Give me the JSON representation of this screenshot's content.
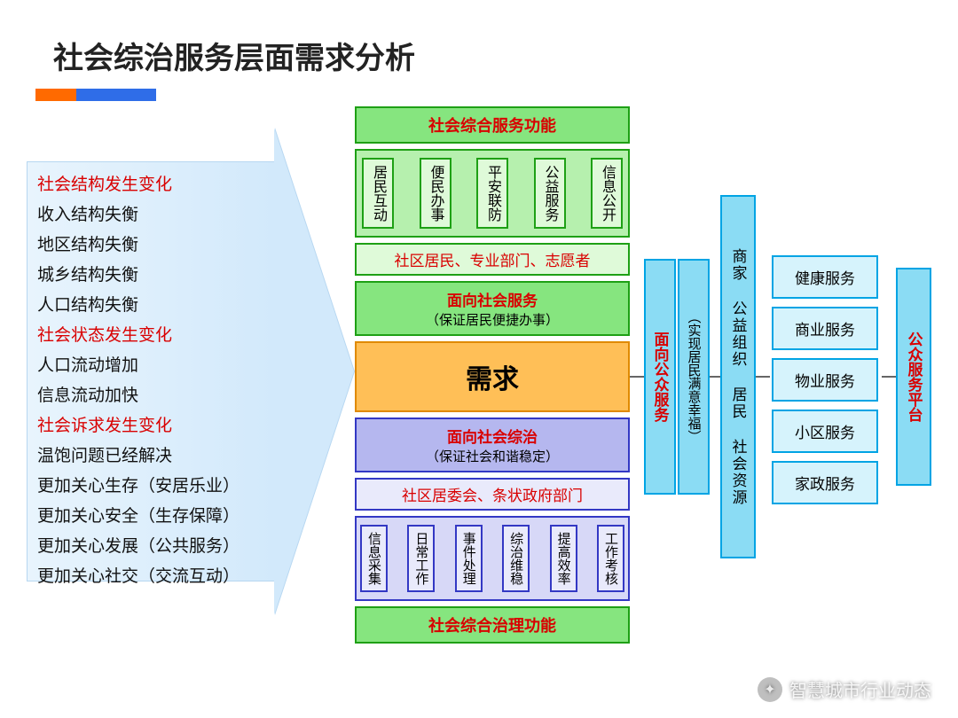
{
  "title": "社会综治服务层面需求分析",
  "accent": {
    "orange": "#ff6a00",
    "blue": "#2f6de8"
  },
  "left_list": [
    {
      "text": "社会结构发生变化",
      "color": "red"
    },
    {
      "text": "收入结构失衡",
      "color": "blk"
    },
    {
      "text": "地区结构失衡",
      "color": "blk"
    },
    {
      "text": "城乡结构失衡",
      "color": "blk"
    },
    {
      "text": "人口结构失衡",
      "color": "blk"
    },
    {
      "text": "社会状态发生变化",
      "color": "red"
    },
    {
      "text": "人口流动增加",
      "color": "blk"
    },
    {
      "text": "信息流动加快",
      "color": "blk"
    },
    {
      "text": "社会诉求发生变化",
      "color": "red"
    },
    {
      "text": "温饱问题已经解决",
      "color": "blk"
    },
    {
      "text": "更加关心生存（安居乐业）",
      "color": "blk"
    },
    {
      "text": "更加关心安全（生存保障）",
      "color": "blk"
    },
    {
      "text": "更加关心发展（公共服务）",
      "color": "blk"
    },
    {
      "text": "更加关心社交（交流互动）",
      "color": "blk"
    }
  ],
  "center": {
    "top_header": "社会综合服务功能",
    "top_items": [
      "居民互动",
      "便民办事",
      "平安联防",
      "公益服务",
      "信息公开"
    ],
    "top_strip": "社区居民、专业部门、志愿者",
    "mid_up": {
      "l1": "面向社会服务",
      "l2": "（保证居民便捷办事）"
    },
    "demand": "需求",
    "mid_down": {
      "l1": "面向社会综治",
      "l2": "（保证社会和谐稳定）"
    },
    "bottom_strip": "社区居委会、条状政府部门",
    "bottom_items": [
      "信息采集",
      "日常工作",
      "事件处理",
      "综治维稳",
      "提高效率",
      "工作考核"
    ],
    "bottom_header": "社会综合治理功能"
  },
  "right": {
    "v_main": {
      "l1": "面向公众服务",
      "l2": "（实现居民满意幸福）"
    },
    "v_mid": "商家 公益组织 居民 社会资源",
    "services": [
      "健康服务",
      "商业服务",
      "物业服务",
      "小区服务",
      "家政服务"
    ],
    "v_platform": "公众服务平台"
  },
  "watermark": "智慧城市行业动态",
  "colors": {
    "green_border": "#1ea015",
    "green_fill": "#86e57f",
    "green_light": "#dffad9",
    "purple_border": "#3338c4",
    "purple_fill": "#b5b7ef",
    "purple_light": "#e9eafb",
    "blue_border": "#00a4e4",
    "blue_fill": "#8bdcf4",
    "blue_light": "#d6f3fc",
    "orange_border": "#e08a00",
    "orange_fill": "#ffbf57",
    "text_red": "#d90000"
  }
}
